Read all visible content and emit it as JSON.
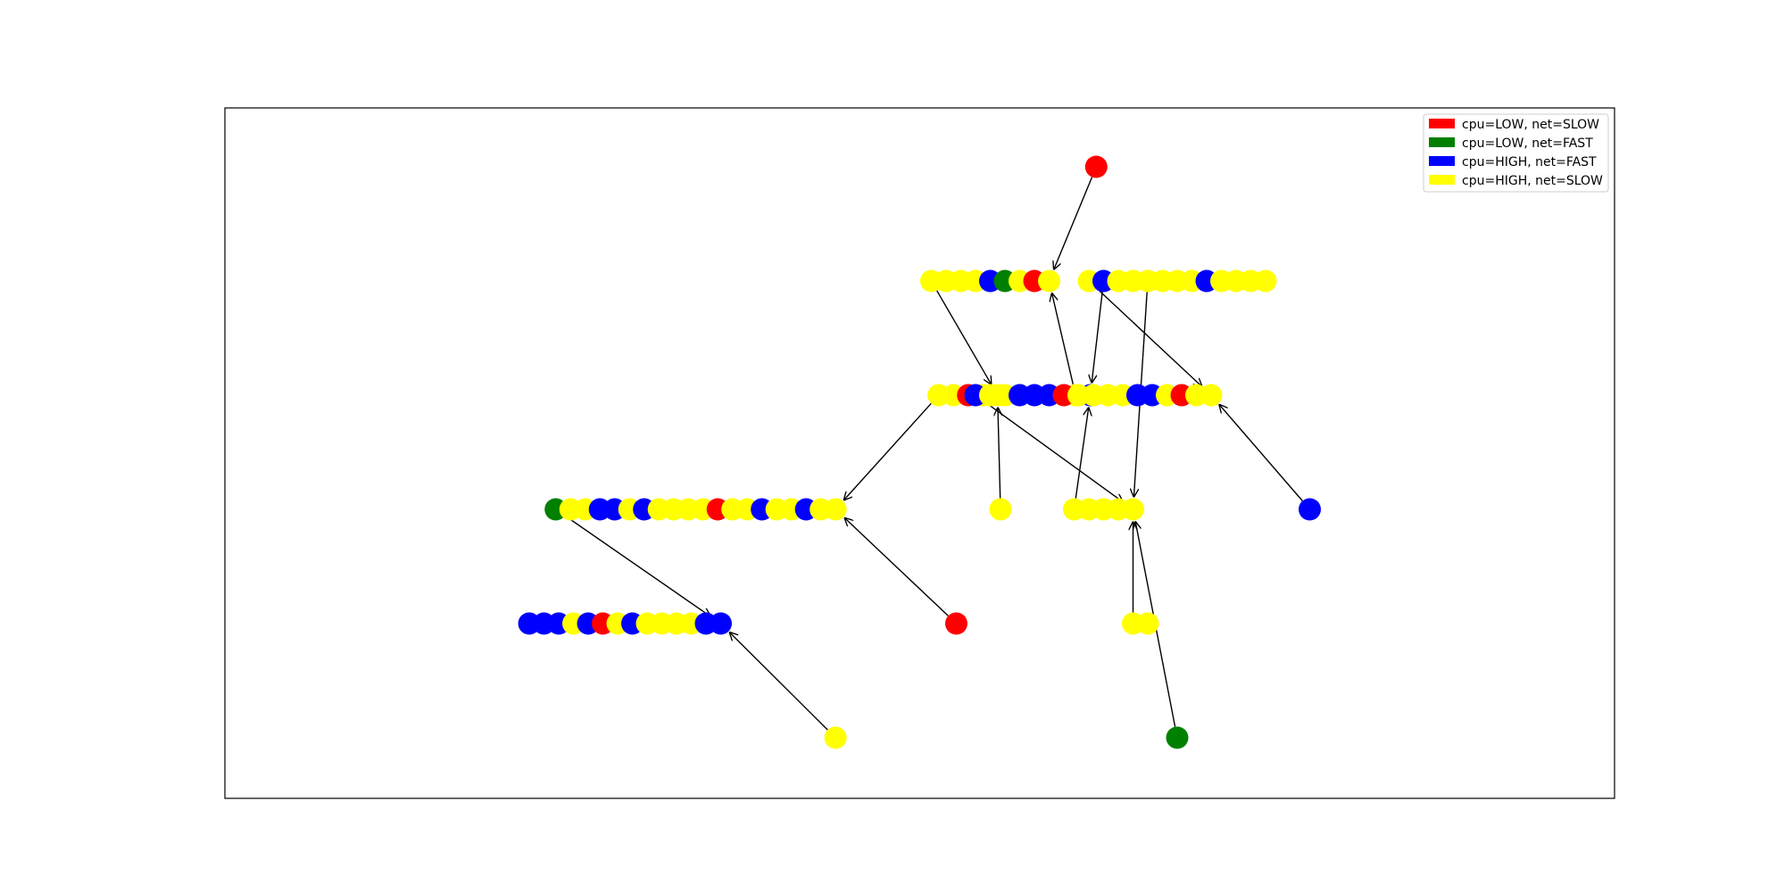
{
  "legend": {
    "location": "upper-right",
    "entries": [
      {
        "key": "LS",
        "label": "cpu=LOW, net=SLOW",
        "color": "#ff0000"
      },
      {
        "key": "LF",
        "label": "cpu=LOW, net=FAST",
        "color": "#008000"
      },
      {
        "key": "HF",
        "label": "cpu=HIGH, net=FAST",
        "color": "#0000ff"
      },
      {
        "key": "HS",
        "label": "cpu=HIGH, net=SLOW",
        "color": "#ffff00"
      }
    ]
  },
  "graph": {
    "clusters": [
      {
        "id": "a",
        "row": 1,
        "column": 8.5,
        "nodes": [
          "LS"
        ]
      },
      {
        "id": "b",
        "row": 2,
        "column": 5.3,
        "nodes": [
          "HS",
          "HS",
          "HS",
          "HS",
          "HF",
          "LF",
          "HS",
          "LS",
          "HS"
        ]
      },
      {
        "id": "c",
        "row": 2,
        "column": 9.0,
        "nodes": [
          "HS"
        ]
      },
      {
        "id": "d",
        "row": 2,
        "column": 12.0,
        "nodes": [
          "HS"
        ]
      },
      {
        "id": "e",
        "row": 2,
        "column": 20.0,
        "nodes": [
          "HS",
          "HF",
          "HS",
          "HS",
          "HS",
          "HS",
          "HS",
          "HS",
          "HF",
          "HS",
          "HS",
          "HS",
          "HS"
        ]
      },
      {
        "id": "f",
        "row": 3,
        "column": 1.8,
        "nodes": [
          "HS",
          "HS",
          "LS",
          "HS",
          "HS"
        ]
      },
      {
        "id": "g",
        "row": 3,
        "column": 8.1,
        "nodes": [
          "HS",
          "HF"
        ]
      },
      {
        "id": "h",
        "row": 3,
        "column": 16.3,
        "nodes": [
          "HF",
          "HS",
          "HS",
          "HF",
          "HF",
          "HF",
          "LS",
          "HS",
          "HS",
          "HS",
          "HS",
          "HF",
          "HF",
          "HS",
          "LS",
          "HS",
          "HS"
        ]
      },
      {
        "id": "i",
        "row": 4,
        "column": -9.2,
        "nodes": [
          "LF",
          "HS",
          "HS",
          "HF",
          "HF",
          "HS",
          "HF",
          "HS",
          "HS",
          "HS",
          "HS",
          "LS",
          "HS",
          "HS",
          "HF",
          "HS",
          "HS",
          "HF",
          "HS",
          "HS"
        ]
      },
      {
        "id": "j",
        "row": 4,
        "column": 2.0,
        "nodes": [
          "HS"
        ]
      },
      {
        "id": "k",
        "row": 4,
        "column": 11.0,
        "nodes": [
          "HS",
          "HS",
          "HS",
          "HS",
          "HS"
        ]
      },
      {
        "id": "l",
        "row": 4,
        "column": 23.0,
        "nodes": [
          "HF"
        ]
      },
      {
        "id": "m",
        "row": 5,
        "column": -17.0,
        "nodes": [
          "HF",
          "HF",
          "HF",
          "HS",
          "HF",
          "LS",
          "HS",
          "HF",
          "HS",
          "HS",
          "HS",
          "HS",
          "HF",
          "HF"
        ]
      },
      {
        "id": "n",
        "row": 5,
        "column": -1.0,
        "nodes": [
          "LS"
        ]
      },
      {
        "id": "o",
        "row": 5,
        "column": 12.0,
        "nodes": [
          "HS",
          "HS"
        ]
      },
      {
        "id": "p",
        "row": 6,
        "column": -9.2,
        "nodes": [
          "HS"
        ]
      },
      {
        "id": "q",
        "row": 6,
        "column": 14.0,
        "nodes": [
          "LF"
        ]
      }
    ],
    "edges": [
      {
        "from": "a",
        "to": "b"
      },
      {
        "from": "b",
        "to": "f"
      },
      {
        "from": "c",
        "to": "g"
      },
      {
        "from": "d",
        "to": "k"
      },
      {
        "from": "e",
        "to": "h"
      },
      {
        "from": "f",
        "to": "i"
      },
      {
        "from": "g",
        "to": "b"
      },
      {
        "from": "h",
        "to": "k"
      },
      {
        "from": "i",
        "to": "m"
      },
      {
        "from": "j",
        "to": "f"
      },
      {
        "from": "k",
        "to": "g"
      },
      {
        "from": "l",
        "to": "h"
      },
      {
        "from": "n",
        "to": "i"
      },
      {
        "from": "o",
        "to": "k"
      },
      {
        "from": "p",
        "to": "m"
      },
      {
        "from": "q",
        "to": "k"
      }
    ]
  }
}
